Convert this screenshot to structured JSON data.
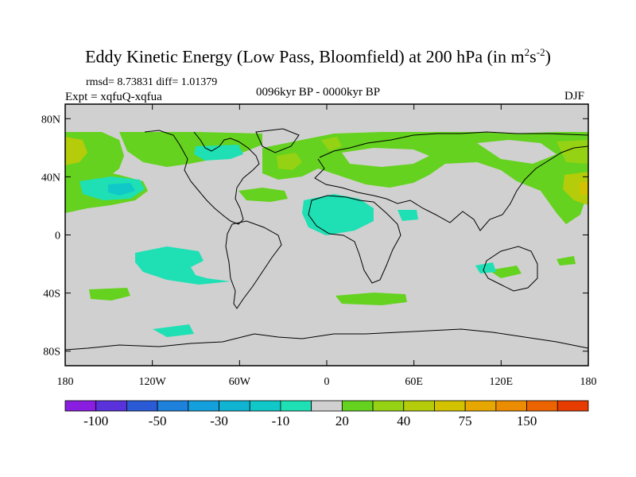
{
  "title": {
    "main": "Eddy Kinetic Energy (Low Pass, Bloomfield) at 200 hPa (in m",
    "sup1": "2",
    "mid": "s",
    "sup2": "-2",
    "end": ")"
  },
  "stats": "rmsd= 8.73831 diff= 1.01379",
  "experiment": "Expt = xqfuQ-xqfua",
  "period": "0096kyr BP - 0000kyr BP",
  "season": "DJF",
  "lat_labels": [
    {
      "value": 80,
      "label": "80N"
    },
    {
      "value": 40,
      "label": "40N"
    },
    {
      "value": 0,
      "label": "0"
    },
    {
      "value": -40,
      "label": "40S"
    },
    {
      "value": -80,
      "label": "80S"
    }
  ],
  "lon_labels": [
    {
      "value": -180,
      "label": "180"
    },
    {
      "value": -120,
      "label": "120W"
    },
    {
      "value": -60,
      "label": "60W"
    },
    {
      "value": 0,
      "label": "0"
    },
    {
      "value": 60,
      "label": "60E"
    },
    {
      "value": 120,
      "label": "120E"
    },
    {
      "value": 180,
      "label": "180"
    }
  ],
  "colorbar": {
    "colors": [
      "#8a1ee0",
      "#5a32dc",
      "#2a5ad6",
      "#1e82dc",
      "#14a0dc",
      "#10b4d2",
      "#10c8c8",
      "#1ee0b4",
      "#d0d0d0",
      "#64d21e",
      "#96d214",
      "#b4cc0a",
      "#d2c200",
      "#e6a800",
      "#ec8c00",
      "#ec6400",
      "#e63c00"
    ],
    "labels": [
      {
        "boundary": 1,
        "text": "-100"
      },
      {
        "boundary": 3,
        "text": "-50"
      },
      {
        "boundary": 5,
        "text": "-30"
      },
      {
        "boundary": 7,
        "text": "-10"
      },
      {
        "boundary": 9,
        "text": "20"
      },
      {
        "boundary": 11,
        "text": "40"
      },
      {
        "boundary": 13,
        "text": "75"
      },
      {
        "boundary": 15,
        "text": "150"
      }
    ]
  },
  "map": {
    "lon_range": [
      -180,
      180
    ],
    "lat_range": [
      -90,
      90
    ],
    "background_color": "#d0d0d0",
    "coastline_color": "#000000"
  }
}
